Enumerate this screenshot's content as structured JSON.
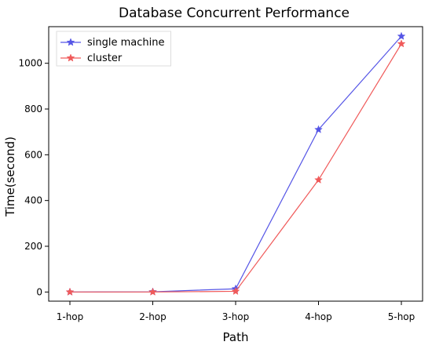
{
  "chart_data": {
    "type": "line",
    "title": "Database Concurrent Performance",
    "xlabel": "Path",
    "ylabel": "Time(second)",
    "categories": [
      "1-hop",
      "2-hop",
      "3-hop",
      "4-hop",
      "5-hop"
    ],
    "ylim": [
      -40,
      1160
    ],
    "yticks": [
      0,
      200,
      400,
      600,
      800,
      1000
    ],
    "grid": false,
    "legend_position": "top-left",
    "series": [
      {
        "name": "single machine",
        "color": "#5555e6",
        "marker": "star",
        "values": [
          0,
          1,
          14,
          710,
          1118
        ]
      },
      {
        "name": "cluster",
        "color": "#f05a5a",
        "marker": "star",
        "values": [
          0,
          0,
          3,
          490,
          1085
        ]
      }
    ]
  }
}
